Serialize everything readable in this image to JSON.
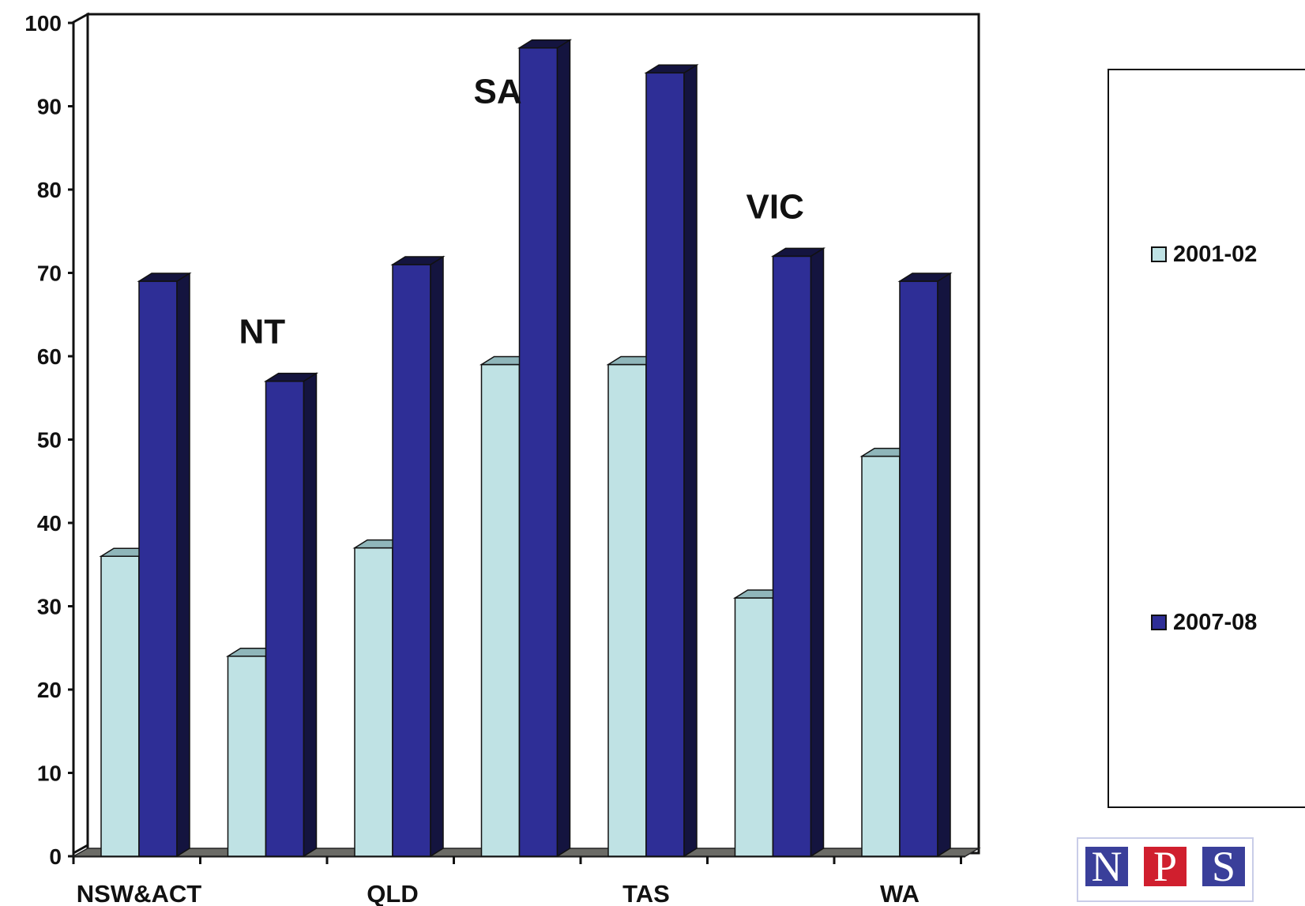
{
  "chart_data": {
    "type": "bar",
    "categories": [
      "NSW&ACT",
      "NT",
      "QLD",
      "SA",
      "TAS",
      "VIC",
      "WA"
    ],
    "x_tick_labels": [
      "NSW&ACT",
      "QLD",
      "TAS",
      "WA"
    ],
    "x_tick_label_categories": [
      0,
      2,
      4,
      6
    ],
    "plot_labels": [
      "NT",
      "SA",
      "VIC"
    ],
    "plot_label_categories": [
      1,
      3,
      5
    ],
    "series": [
      {
        "name": "2001-02",
        "values": [
          36,
          24,
          37,
          59,
          59,
          31,
          48
        ],
        "color": "#bfe2e4",
        "side_color": "#8fb6ba"
      },
      {
        "name": "2007-08",
        "values": [
          69,
          57,
          71,
          97,
          94,
          72,
          69
        ],
        "color": "#2e2e96",
        "side_color": "#14143f"
      }
    ],
    "ylim": [
      0,
      100
    ],
    "yticks": [
      0,
      10,
      20,
      30,
      40,
      50,
      60,
      70,
      80,
      90,
      100
    ],
    "grid": false,
    "legend_position": "right",
    "bar_style": "3d",
    "floor_color": "#6b6b66"
  },
  "logo": {
    "letters": [
      "N",
      "P",
      "S"
    ],
    "colors": [
      "#3a3f9a",
      "#d01f2e",
      "#3a3f9a"
    ]
  }
}
